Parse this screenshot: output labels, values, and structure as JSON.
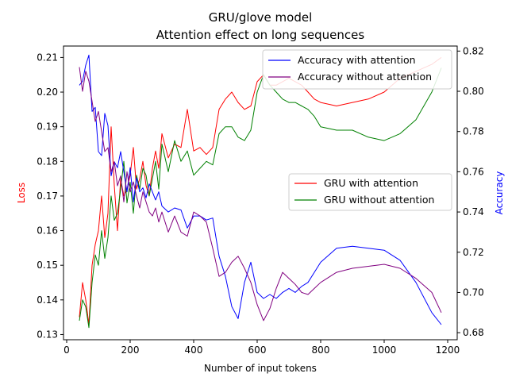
{
  "chart_data": {
    "type": "line",
    "title": "GRU/glove model",
    "subtitle": "Attention effect on long sequences",
    "xlabel": "Number of input tokens",
    "ylabel_left": "Loss",
    "ylabel_right": "Accuracy",
    "xlim": [
      -10,
      1230
    ],
    "ylim_left": [
      0.1285,
      0.2133
    ],
    "ylim_right": [
      0.6765,
      0.8225
    ],
    "x_ticks": [
      "0",
      "200",
      "400",
      "600",
      "800",
      "1000",
      "1200"
    ],
    "y_ticks_left": [
      "0.13",
      "0.14",
      "0.15",
      "0.16",
      "0.17",
      "0.18",
      "0.19",
      "0.20",
      "0.21"
    ],
    "y_ticks_right": [
      "0.68",
      "0.70",
      "0.72",
      "0.74",
      "0.76",
      "0.78",
      "0.80",
      "0.82"
    ],
    "grid": false,
    "legends": [
      {
        "placement": "upper-right",
        "entries": [
          "Accuracy with attention",
          "Accuracy without attention"
        ]
      },
      {
        "placement": "center-right",
        "entries": [
          "GRU with attention",
          "GRU without attention"
        ]
      }
    ],
    "series": [
      {
        "name": "GRU with attention",
        "axis": "left",
        "color": "#ff0000",
        "x": [
          40,
          50,
          60,
          70,
          80,
          90,
          100,
          110,
          120,
          130,
          140,
          150,
          160,
          170,
          180,
          190,
          200,
          210,
          220,
          230,
          240,
          250,
          260,
          270,
          280,
          290,
          300,
          320,
          340,
          360,
          380,
          400,
          420,
          440,
          460,
          480,
          500,
          520,
          540,
          560,
          580,
          600,
          620,
          640,
          660,
          680,
          700,
          720,
          740,
          760,
          780,
          800,
          850,
          900,
          950,
          1000,
          1050,
          1100,
          1150,
          1180
        ],
        "y": [
          0.135,
          0.145,
          0.14,
          0.133,
          0.15,
          0.156,
          0.16,
          0.17,
          0.158,
          0.165,
          0.19,
          0.173,
          0.16,
          0.175,
          0.17,
          0.172,
          0.176,
          0.184,
          0.172,
          0.175,
          0.18,
          0.173,
          0.17,
          0.178,
          0.183,
          0.178,
          0.188,
          0.181,
          0.185,
          0.184,
          0.195,
          0.183,
          0.184,
          0.182,
          0.184,
          0.195,
          0.198,
          0.2,
          0.197,
          0.195,
          0.196,
          0.203,
          0.205,
          0.202,
          0.202,
          0.203,
          0.204,
          0.203,
          0.202,
          0.2,
          0.198,
          0.197,
          0.196,
          0.197,
          0.198,
          0.2,
          0.204,
          0.206,
          0.208,
          0.21
        ]
      },
      {
        "name": "GRU without attention",
        "axis": "left",
        "color": "#008000",
        "x": [
          40,
          50,
          60,
          70,
          80,
          90,
          100,
          110,
          120,
          130,
          140,
          150,
          160,
          170,
          180,
          190,
          200,
          210,
          220,
          230,
          240,
          250,
          260,
          270,
          280,
          290,
          300,
          320,
          340,
          360,
          380,
          400,
          420,
          440,
          460,
          480,
          500,
          520,
          540,
          560,
          580,
          600,
          620,
          640,
          660,
          680,
          700,
          720,
          740,
          760,
          780,
          800,
          850,
          900,
          950,
          1000,
          1050,
          1100,
          1150,
          1180
        ],
        "y": [
          0.134,
          0.14,
          0.138,
          0.132,
          0.145,
          0.153,
          0.15,
          0.16,
          0.152,
          0.158,
          0.17,
          0.163,
          0.165,
          0.172,
          0.18,
          0.168,
          0.174,
          0.165,
          0.176,
          0.172,
          0.178,
          0.176,
          0.17,
          0.175,
          0.18,
          0.172,
          0.185,
          0.177,
          0.186,
          0.18,
          0.183,
          0.176,
          0.178,
          0.18,
          0.179,
          0.188,
          0.19,
          0.19,
          0.187,
          0.186,
          0.189,
          0.2,
          0.205,
          0.202,
          0.2,
          0.198,
          0.197,
          0.197,
          0.196,
          0.195,
          0.193,
          0.19,
          0.189,
          0.189,
          0.187,
          0.186,
          0.188,
          0.192,
          0.2,
          0.207
        ]
      },
      {
        "name": "Accuracy with attention",
        "axis": "right",
        "color": "#0000ff",
        "x": [
          40,
          50,
          60,
          70,
          80,
          90,
          100,
          110,
          120,
          130,
          140,
          150,
          160,
          170,
          180,
          190,
          200,
          210,
          220,
          230,
          240,
          250,
          260,
          270,
          280,
          290,
          300,
          320,
          340,
          360,
          380,
          400,
          420,
          440,
          460,
          480,
          500,
          520,
          540,
          560,
          580,
          600,
          620,
          640,
          660,
          680,
          700,
          720,
          740,
          760,
          780,
          800,
          850,
          900,
          950,
          1000,
          1050,
          1100,
          1150,
          1180
        ],
        "y": [
          0.803,
          0.805,
          0.813,
          0.818,
          0.79,
          0.792,
          0.77,
          0.768,
          0.789,
          0.783,
          0.758,
          0.765,
          0.762,
          0.77,
          0.76,
          0.75,
          0.762,
          0.745,
          0.757,
          0.75,
          0.752,
          0.747,
          0.754,
          0.75,
          0.746,
          0.75,
          0.743,
          0.74,
          0.742,
          0.741,
          0.732,
          0.738,
          0.738,
          0.736,
          0.737,
          0.718,
          0.708,
          0.693,
          0.687,
          0.705,
          0.715,
          0.7,
          0.697,
          0.699,
          0.697,
          0.7,
          0.702,
          0.7,
          0.703,
          0.705,
          0.71,
          0.715,
          0.722,
          0.723,
          0.722,
          0.721,
          0.716,
          0.705,
          0.69,
          0.684
        ]
      },
      {
        "name": "Accuracy without attention",
        "axis": "right",
        "color": "#800080",
        "x": [
          40,
          50,
          60,
          70,
          80,
          90,
          100,
          110,
          120,
          130,
          140,
          150,
          160,
          170,
          180,
          190,
          200,
          210,
          220,
          230,
          240,
          250,
          260,
          270,
          280,
          290,
          300,
          320,
          340,
          360,
          380,
          400,
          420,
          440,
          460,
          480,
          500,
          520,
          540,
          560,
          580,
          600,
          620,
          640,
          660,
          680,
          700,
          720,
          740,
          760,
          780,
          800,
          850,
          900,
          950,
          1000,
          1050,
          1100,
          1150,
          1180
        ],
        "y": [
          0.812,
          0.8,
          0.81,
          0.805,
          0.795,
          0.785,
          0.79,
          0.78,
          0.77,
          0.772,
          0.76,
          0.765,
          0.753,
          0.758,
          0.745,
          0.76,
          0.75,
          0.755,
          0.748,
          0.742,
          0.75,
          0.745,
          0.74,
          0.738,
          0.742,
          0.735,
          0.74,
          0.73,
          0.738,
          0.73,
          0.728,
          0.74,
          0.738,
          0.735,
          0.722,
          0.708,
          0.71,
          0.715,
          0.718,
          0.712,
          0.705,
          0.694,
          0.686,
          0.692,
          0.702,
          0.71,
          0.707,
          0.704,
          0.7,
          0.699,
          0.702,
          0.705,
          0.71,
          0.712,
          0.713,
          0.714,
          0.712,
          0.707,
          0.7,
          0.69
        ]
      }
    ]
  }
}
